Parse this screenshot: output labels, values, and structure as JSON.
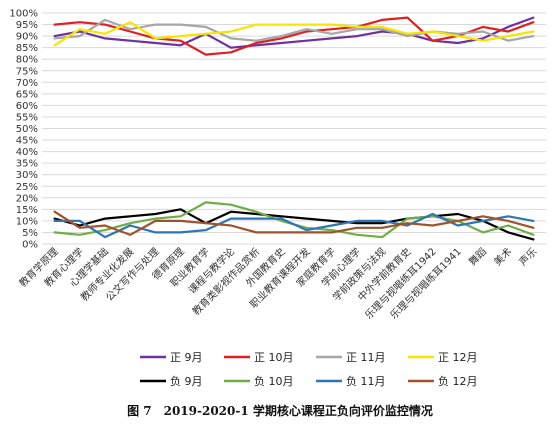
{
  "caption": "图 7　2019-2020-1 学期核心课程正负向评价监控情况",
  "chart_data": {
    "type": "line",
    "title": "",
    "xlabel": "",
    "ylabel": "",
    "ylim": [
      0,
      100
    ],
    "y_ticks": [
      "0%",
      "5%",
      "10%",
      "15%",
      "20%",
      "25%",
      "30%",
      "35%",
      "40%",
      "45%",
      "50%",
      "55%",
      "60%",
      "65%",
      "70%",
      "75%",
      "80%",
      "85%",
      "90%",
      "95%",
      "100%"
    ],
    "grid": "horizontal",
    "legend_position": "bottom",
    "categories": [
      "教育学原理",
      "教育心理学",
      "心理学基础",
      "教师专业化发展",
      "公文写作与处理",
      "德育原理",
      "职业教育学",
      "课程与教学论",
      "教育类影视作品赏析",
      "外国教育史",
      "职业教育课程开发",
      "家庭教育学",
      "学前心理学",
      "学前政策与法规",
      "中外学前教育史",
      "乐理与视唱练耳1942",
      "乐理与视唱练耳1941",
      "舞蹈",
      "美术",
      "声乐"
    ],
    "series": [
      {
        "name": "正 9月",
        "color": "#7030a0",
        "values": [
          90,
          92,
          89,
          88,
          87,
          86,
          91,
          85,
          86,
          87,
          88,
          89,
          90,
          92,
          91,
          88,
          87,
          89,
          94,
          98
        ]
      },
      {
        "name": "正 10月",
        "color": "#e02020",
        "values": [
          95,
          96,
          95,
          92,
          89,
          88,
          82,
          83,
          87,
          89,
          92,
          93,
          94,
          97,
          98,
          88,
          90,
          94,
          92,
          96
        ]
      },
      {
        "name": "正 11月",
        "color": "#a6a6a6",
        "values": [
          89,
          90,
          97,
          93,
          95,
          95,
          94,
          89,
          88,
          90,
          93,
          91,
          93,
          93,
          90,
          92,
          91,
          92,
          88,
          90
        ]
      },
      {
        "name": "正 12月",
        "color": "#f5e500",
        "values": [
          86,
          93,
          91,
          96,
          89,
          90,
          91,
          92,
          95,
          95,
          95,
          95,
          94,
          94,
          91,
          92,
          90,
          88,
          90,
          92
        ]
      },
      {
        "name": "负 9月",
        "color": "#000000",
        "values": [
          11,
          8,
          11,
          12,
          13,
          15,
          9,
          14,
          13,
          12,
          11,
          10,
          9,
          9,
          11,
          12,
          13,
          10,
          5,
          2
        ]
      },
      {
        "name": "负 10月",
        "color": "#70ad47",
        "values": [
          5,
          4,
          6,
          9,
          11,
          12,
          18,
          17,
          14,
          10,
          7,
          6,
          4,
          3,
          11,
          12,
          10,
          5,
          8,
          4
        ]
      },
      {
        "name": "负 11月",
        "color": "#2e75b6",
        "values": [
          10,
          10,
          3,
          8,
          5,
          5,
          6,
          11,
          11,
          11,
          6,
          8,
          10,
          10,
          8,
          13,
          8,
          10,
          12,
          10
        ]
      },
      {
        "name": "负 12月",
        "color": "#a0522d",
        "values": [
          14,
          7,
          8,
          4,
          10,
          10,
          9,
          8,
          5,
          5,
          5,
          5,
          7,
          7,
          9,
          8,
          10,
          12,
          10,
          7
        ]
      }
    ]
  }
}
